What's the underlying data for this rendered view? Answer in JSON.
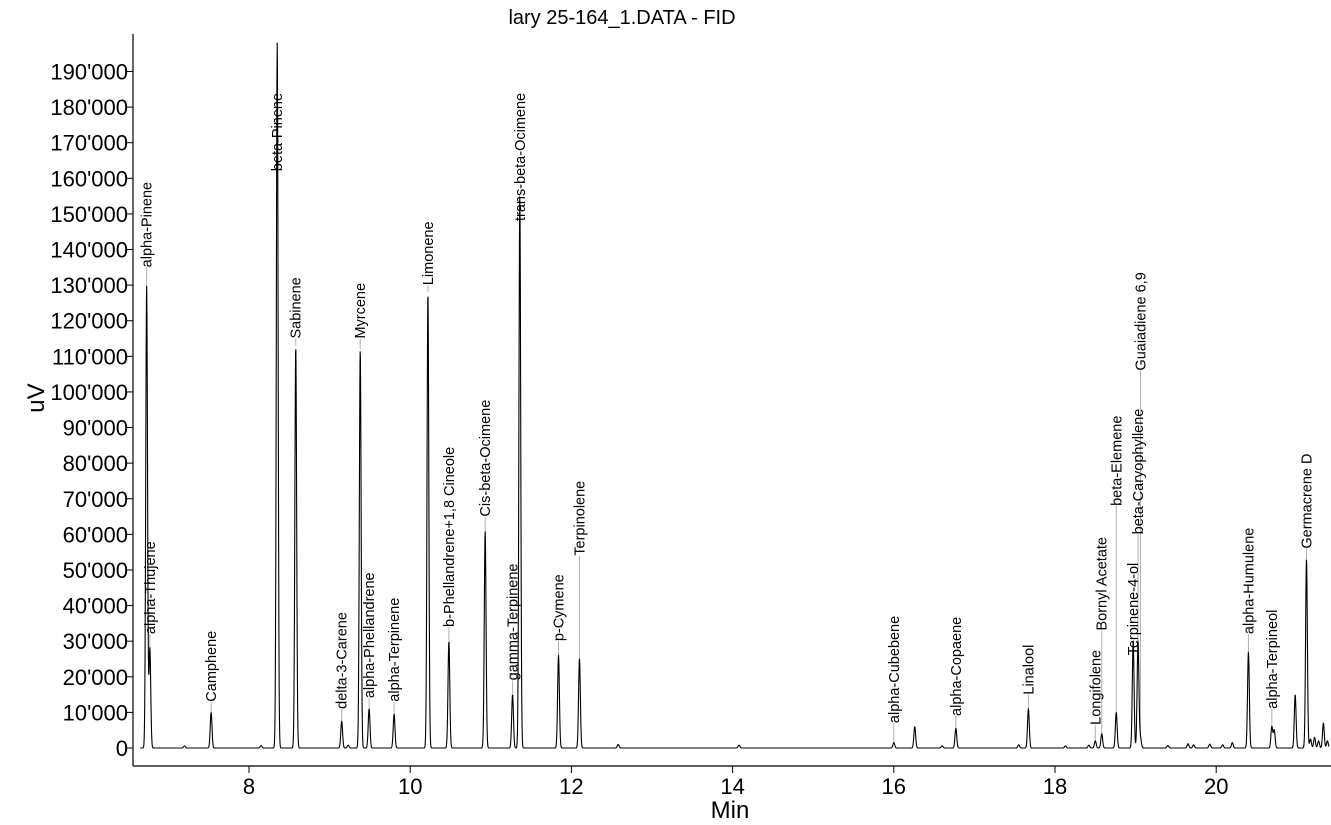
{
  "chart_data": {
    "type": "line",
    "title": "lary 25-164_1.DATA - FID",
    "xlabel": "Min",
    "ylabel": "uV",
    "xlim": [
      6.65,
      21.4
    ],
    "ylim": [
      -5000,
      198000
    ],
    "xticks": [
      8,
      10,
      12,
      14,
      16,
      18,
      20
    ],
    "yticks": [
      {
        "value": 0,
        "label": "0"
      },
      {
        "value": 10000,
        "label": "10'000"
      },
      {
        "value": 20000,
        "label": "20'000"
      },
      {
        "value": 30000,
        "label": "30'000"
      },
      {
        "value": 40000,
        "label": "40'000"
      },
      {
        "value": 50000,
        "label": "50'000"
      },
      {
        "value": 60000,
        "label": "60'000"
      },
      {
        "value": 70000,
        "label": "70'000"
      },
      {
        "value": 80000,
        "label": "80'000"
      },
      {
        "value": 90000,
        "label": "90'000"
      },
      {
        "value": 100000,
        "label": "100'000"
      },
      {
        "value": 110000,
        "label": "110'000"
      },
      {
        "value": 120000,
        "label": "120'000"
      },
      {
        "value": 130000,
        "label": "130'000"
      },
      {
        "value": 140000,
        "label": "140'000"
      },
      {
        "value": 150000,
        "label": "150'000"
      },
      {
        "value": 160000,
        "label": "160'000"
      },
      {
        "value": 170000,
        "label": "170'000"
      },
      {
        "value": 180000,
        "label": "180'000"
      },
      {
        "value": 190000,
        "label": "190'000"
      }
    ],
    "peaks": [
      {
        "name": "alpha-Pinene",
        "rt": 6.73,
        "height": 130000,
        "label_y": 135000
      },
      {
        "name": "alpha-Thujene",
        "rt": 6.77,
        "height": 28000,
        "label_y": 32000
      },
      {
        "name": "Camphene",
        "rt": 7.53,
        "height": 10000,
        "label_y": 13000
      },
      {
        "name": "beta-Pinene",
        "rt": 8.35,
        "height": 198000,
        "label_y": 162000
      },
      {
        "name": "Sabinene",
        "rt": 8.58,
        "height": 113000,
        "label_y": 115000
      },
      {
        "name": "delta-3-Carene",
        "rt": 9.15,
        "height": 7500,
        "label_y": 11000
      },
      {
        "name": "Myrcene",
        "rt": 9.38,
        "height": 112000,
        "label_y": 115000
      },
      {
        "name": "alpha-Phellandrene",
        "rt": 9.49,
        "height": 11000,
        "label_y": 14000
      },
      {
        "name": "alpha-Terpinene",
        "rt": 9.8,
        "height": 9500,
        "label_y": 13000
      },
      {
        "name": "Limonene",
        "rt": 10.22,
        "height": 128000,
        "label_y": 130000
      },
      {
        "name": "b-Phellandrene+1,8 Cineole",
        "rt": 10.48,
        "height": 30000,
        "label_y": 34000
      },
      {
        "name": "Cis-beta-Ocimene",
        "rt": 10.93,
        "height": 61000,
        "label_y": 65000
      },
      {
        "name": "gamma-Terpinene",
        "rt": 11.27,
        "height": 15000,
        "label_y": 19000
      },
      {
        "name": "trans-beta-Ocimene",
        "rt": 11.36,
        "height": 155000,
        "label_y": 148000
      },
      {
        "name": "p-Cymene",
        "rt": 11.84,
        "height": 26000,
        "label_y": 30000
      },
      {
        "name": "Terpinolene",
        "rt": 12.1,
        "height": 25000,
        "label_y": 54000
      },
      {
        "name": "alpha-Cubebene",
        "rt": 16.0,
        "height": 1500,
        "label_y": 7000
      },
      {
        "name": "alpha-Copaene",
        "rt": 16.77,
        "height": 5500,
        "label_y": 9000
      },
      {
        "name": "Linalool",
        "rt": 17.67,
        "height": 11000,
        "label_y": 15000
      },
      {
        "name": "Longifolene",
        "rt": 18.5,
        "height": 2000,
        "label_y": 6500
      },
      {
        "name": "Bornyl Acetate",
        "rt": 18.58,
        "height": 4000,
        "label_y": 33000
      },
      {
        "name": "beta-Elemene",
        "rt": 18.76,
        "height": 10000,
        "label_y": 68000
      },
      {
        "name": "Terpinene-4-ol",
        "rt": 18.97,
        "height": 30000,
        "label_y": 26000
      },
      {
        "name": "beta-Caryophyllene",
        "rt": 19.03,
        "height": 30000,
        "label_y": 60000
      },
      {
        "name": "Guaiadiene 6,9",
        "rt": 19.06,
        "height": 3000,
        "label_y": 106000
      },
      {
        "name": "alpha-Humulene",
        "rt": 20.4,
        "height": 27000,
        "label_y": 32000
      },
      {
        "name": "alpha-Terpineol",
        "rt": 20.69,
        "height": 6000,
        "label_y": 11000
      },
      {
        "name": "Germacrene D",
        "rt": 21.12,
        "height": 53000,
        "label_y": 56000
      }
    ],
    "minor_peaks": [
      {
        "rt": 7.2,
        "height": 600
      },
      {
        "rt": 8.15,
        "height": 700
      },
      {
        "rt": 9.23,
        "height": 800
      },
      {
        "rt": 12.58,
        "height": 1000
      },
      {
        "rt": 14.08,
        "height": 800
      },
      {
        "rt": 16.26,
        "height": 6000
      },
      {
        "rt": 16.6,
        "height": 600
      },
      {
        "rt": 17.55,
        "height": 900
      },
      {
        "rt": 18.13,
        "height": 600
      },
      {
        "rt": 18.42,
        "height": 800
      },
      {
        "rt": 19.4,
        "height": 700
      },
      {
        "rt": 19.65,
        "height": 1200
      },
      {
        "rt": 19.72,
        "height": 900
      },
      {
        "rt": 19.92,
        "height": 1100
      },
      {
        "rt": 20.08,
        "height": 900
      },
      {
        "rt": 20.2,
        "height": 1500
      },
      {
        "rt": 20.72,
        "height": 5000
      },
      {
        "rt": 20.98,
        "height": 15000
      },
      {
        "rt": 21.17,
        "height": 2500
      },
      {
        "rt": 21.22,
        "height": 3000
      },
      {
        "rt": 21.27,
        "height": 2000
      },
      {
        "rt": 21.33,
        "height": 7000
      },
      {
        "rt": 21.38,
        "height": 2000
      }
    ],
    "grid": false,
    "legend": "none"
  }
}
